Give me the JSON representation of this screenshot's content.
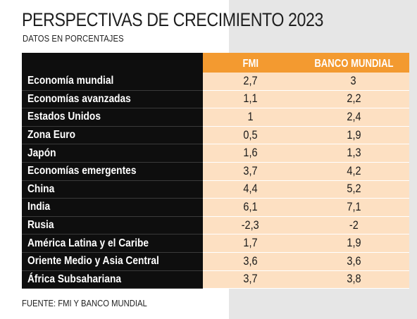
{
  "title": "PERSPECTIVAS DE CRECIMIENTO 2023",
  "subtitle": "DATOS EN PORCENTAJES",
  "source": "FUENTE: FMI Y BANCO MUNDIAL",
  "colors": {
    "header": "#f39a30",
    "label_bg": "#0e0e0e",
    "cell_bg": "#fde0c2",
    "side_bg": "#e6e6e6"
  },
  "chart_data": {
    "type": "table",
    "title": "PERSPECTIVAS DE CRECIMIENTO 2023",
    "columns": [
      "FMI",
      "BANCO MUNDIAL"
    ],
    "rows": [
      {
        "label": "Economía mundial",
        "fmi": "2,7",
        "bm": "3"
      },
      {
        "label": "Economías avanzadas",
        "fmi": "1,1",
        "bm": "2,2"
      },
      {
        "label": "Estados Unidos",
        "fmi": "1",
        "bm": "2,4"
      },
      {
        "label": "Zona Euro",
        "fmi": "0,5",
        "bm": "1,9"
      },
      {
        "label": "Japón",
        "fmi": "1,6",
        "bm": "1,3"
      },
      {
        "label": "Economías emergentes",
        "fmi": "3,7",
        "bm": "4,2"
      },
      {
        "label": "China",
        "fmi": "4,4",
        "bm": "5,2"
      },
      {
        "label": "India",
        "fmi": "6,1",
        "bm": "7,1"
      },
      {
        "label": "Rusia",
        "fmi": "-2,3",
        "bm": "-2"
      },
      {
        "label": "América Latina y el Caribe",
        "fmi": "1,7",
        "bm": "1,9"
      },
      {
        "label": "Oriente Medio y Asia Central",
        "fmi": "3,6",
        "bm": "3,6"
      },
      {
        "label": "África Subsahariana",
        "fmi": "3,7",
        "bm": "3,8"
      }
    ]
  }
}
